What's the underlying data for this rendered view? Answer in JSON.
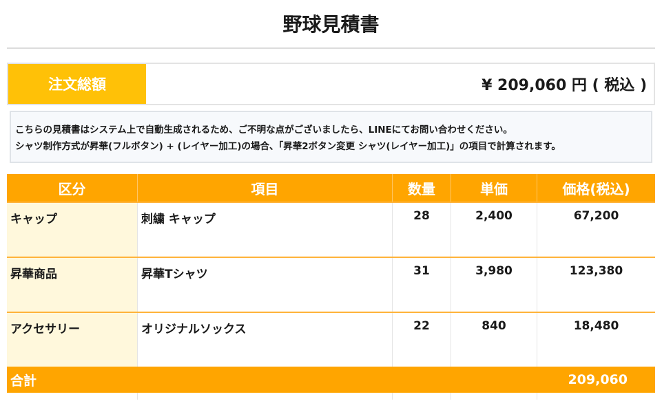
{
  "title": "野球見積書",
  "total": {
    "label": "注文総額",
    "value": "¥ 209,060 円 ( 税込 )"
  },
  "notice": {
    "line1": "こちらの見積書はシステム上で自動生成されるため、ご不明な点がございましたら、LINEにてお問い合わせください。",
    "line2": "シャツ制作方式が昇華(フルボタン) + (レイヤー加工)の場合、「昇華2ボタン変更 シャツ(レイヤー加工)」の項目で計算されます。"
  },
  "table": {
    "headers": [
      "区分",
      "項目",
      "数量",
      "単価",
      "価格(税込)"
    ],
    "rows": [
      {
        "category": "キャップ",
        "item": "刺繍 キャップ",
        "qty": "28",
        "unit_price": "2,400",
        "price": "67,200"
      },
      {
        "category": "昇華商品",
        "item": "昇華Tシャツ",
        "qty": "31",
        "unit_price": "3,980",
        "price": "123,380"
      },
      {
        "category": "アクセサリー",
        "item": "オリジナルソックス",
        "qty": "22",
        "unit_price": "840",
        "price": "18,480"
      }
    ],
    "sum_label": "合計",
    "sum_value": "209,060"
  }
}
